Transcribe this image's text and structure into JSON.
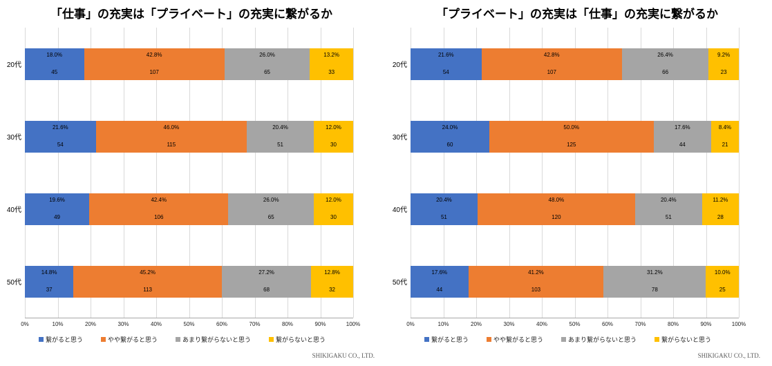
{
  "page": {
    "footer_left": "SHIKIGAKU CO., LTD.",
    "footer_right": "SHIKIGAKU CO., LTD."
  },
  "colors": {
    "blue": "#4472C4",
    "orange": "#ED7D31",
    "gray": "#A5A5A5",
    "yellow": "#FFC000",
    "gridline": "#D9D9D9"
  },
  "chart_data": [
    {
      "type": "bar",
      "stacked": true,
      "orientation": "horizontal",
      "title": "「仕事」の充実は「プライベート」の充実に繋がるか",
      "categories": [
        "20代",
        "30代",
        "40代",
        "50代"
      ],
      "series": [
        {
          "name": "繋がると思う",
          "color": "#4472C4",
          "percent": [
            18.0,
            21.6,
            19.6,
            14.8
          ],
          "count": [
            45,
            54,
            49,
            37
          ]
        },
        {
          "name": "やや繋がると思う",
          "color": "#ED7D31",
          "percent": [
            42.8,
            46.0,
            42.4,
            45.2
          ],
          "count": [
            107,
            115,
            106,
            113
          ]
        },
        {
          "name": "あまり繋がらないと思う",
          "color": "#A5A5A5",
          "percent": [
            26.0,
            20.4,
            26.0,
            27.2
          ],
          "count": [
            65,
            51,
            65,
            68
          ]
        },
        {
          "name": "繋がらないと思う",
          "color": "#FFC000",
          "percent": [
            13.2,
            12.0,
            12.0,
            12.8
          ],
          "count": [
            33,
            30,
            30,
            32
          ]
        }
      ],
      "xlim": [
        0,
        100
      ],
      "x_ticks": [
        "0%",
        "10%",
        "20%",
        "30%",
        "40%",
        "50%",
        "60%",
        "70%",
        "80%",
        "90%",
        "100%"
      ],
      "grid": true,
      "legend_position": "bottom"
    },
    {
      "type": "bar",
      "stacked": true,
      "orientation": "horizontal",
      "title": "「プライベート」の充実は「仕事」の充実に繋がるか",
      "categories": [
        "20代",
        "30代",
        "40代",
        "50代"
      ],
      "series": [
        {
          "name": "繋がると思う",
          "color": "#4472C4",
          "percent": [
            21.6,
            24.0,
            20.4,
            17.6
          ],
          "count": [
            54,
            60,
            51,
            44
          ]
        },
        {
          "name": "やや繋がると思う",
          "color": "#ED7D31",
          "percent": [
            42.8,
            50.0,
            48.0,
            41.2
          ],
          "count": [
            107,
            125,
            120,
            103
          ]
        },
        {
          "name": "あまり繋がらないと思う",
          "color": "#A5A5A5",
          "percent": [
            26.4,
            17.6,
            20.4,
            31.2
          ],
          "count": [
            66,
            44,
            51,
            78
          ]
        },
        {
          "name": "繋がらないと思う",
          "color": "#FFC000",
          "percent": [
            9.2,
            8.4,
            11.2,
            10.0
          ],
          "count": [
            23,
            21,
            28,
            25
          ]
        }
      ],
      "xlim": [
        0,
        100
      ],
      "x_ticks": [
        "0%",
        "10%",
        "20%",
        "30%",
        "40%",
        "50%",
        "60%",
        "70%",
        "80%",
        "90%",
        "100%"
      ],
      "grid": true,
      "legend_position": "bottom"
    }
  ]
}
